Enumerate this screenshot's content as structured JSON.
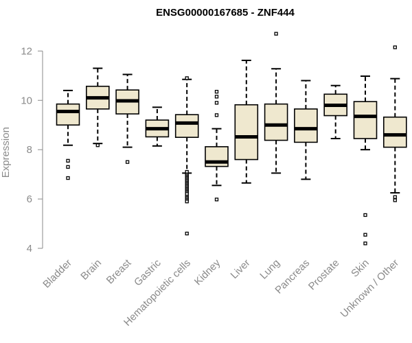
{
  "chart_data": {
    "type": "box",
    "title": "ENSG00000167685 - ZNF444",
    "xlabel": "",
    "ylabel": "Expression",
    "ylim": [
      4,
      12.9
    ],
    "yticks": [
      4,
      6,
      8,
      10,
      12
    ],
    "grid": false,
    "box_fill": "#efe8cf",
    "box_stroke": "#000000",
    "categories": [
      "Bladder",
      "Brain",
      "Breast",
      "Gastric",
      "Hematopoietic cells",
      "Kidney",
      "Liver",
      "Lung",
      "Pancreas",
      "Prostate",
      "Skin",
      "Unknown / Other"
    ],
    "boxes": [
      {
        "whisker_low": 8.18,
        "q1": 9.0,
        "median": 9.55,
        "q3": 9.85,
        "whisker_high": 10.4,
        "outliers": [
          7.55,
          7.3,
          6.85
        ]
      },
      {
        "whisker_low": 8.25,
        "q1": 9.65,
        "median": 10.1,
        "q3": 10.57,
        "whisker_high": 11.3,
        "outliers": [
          8.18
        ]
      },
      {
        "whisker_low": 8.1,
        "q1": 9.45,
        "median": 9.98,
        "q3": 10.42,
        "whisker_high": 11.05,
        "outliers": [
          7.5
        ]
      },
      {
        "whisker_low": 8.15,
        "q1": 8.52,
        "median": 8.85,
        "q3": 9.2,
        "whisker_high": 9.72,
        "outliers": []
      },
      {
        "whisker_low": 7.05,
        "q1": 8.5,
        "median": 9.08,
        "q3": 9.42,
        "whisker_high": 10.85,
        "outliers": [
          10.9,
          7.1,
          7.0,
          6.95,
          6.9,
          6.85,
          6.8,
          6.75,
          6.7,
          6.65,
          6.6,
          6.55,
          6.5,
          6.45,
          6.4,
          6.35,
          6.3,
          6.25,
          6.2,
          6.1,
          6.05,
          6.0,
          5.95,
          5.9,
          4.6
        ]
      },
      {
        "whisker_low": 6.55,
        "q1": 7.32,
        "median": 7.5,
        "q3": 8.12,
        "whisker_high": 8.85,
        "outliers": [
          10.35,
          10.15,
          9.9,
          9.4,
          5.98
        ]
      },
      {
        "whisker_low": 6.65,
        "q1": 7.6,
        "median": 8.52,
        "q3": 9.82,
        "whisker_high": 11.62,
        "outliers": []
      },
      {
        "whisker_low": 7.05,
        "q1": 8.38,
        "median": 9.0,
        "q3": 9.85,
        "whisker_high": 11.28,
        "outliers": [
          12.7
        ]
      },
      {
        "whisker_low": 6.8,
        "q1": 8.3,
        "median": 8.85,
        "q3": 9.65,
        "whisker_high": 10.8,
        "outliers": []
      },
      {
        "whisker_low": 8.45,
        "q1": 9.38,
        "median": 9.8,
        "q3": 10.25,
        "whisker_high": 10.6,
        "outliers": []
      },
      {
        "whisker_low": 8.0,
        "q1": 8.45,
        "median": 9.35,
        "q3": 9.95,
        "whisker_high": 10.98,
        "outliers": [
          5.35,
          4.55,
          4.2
        ]
      },
      {
        "whisker_low": 6.25,
        "q1": 8.1,
        "median": 8.6,
        "q3": 9.32,
        "whisker_high": 10.88,
        "outliers": [
          12.15,
          6.08,
          5.95
        ]
      }
    ]
  }
}
